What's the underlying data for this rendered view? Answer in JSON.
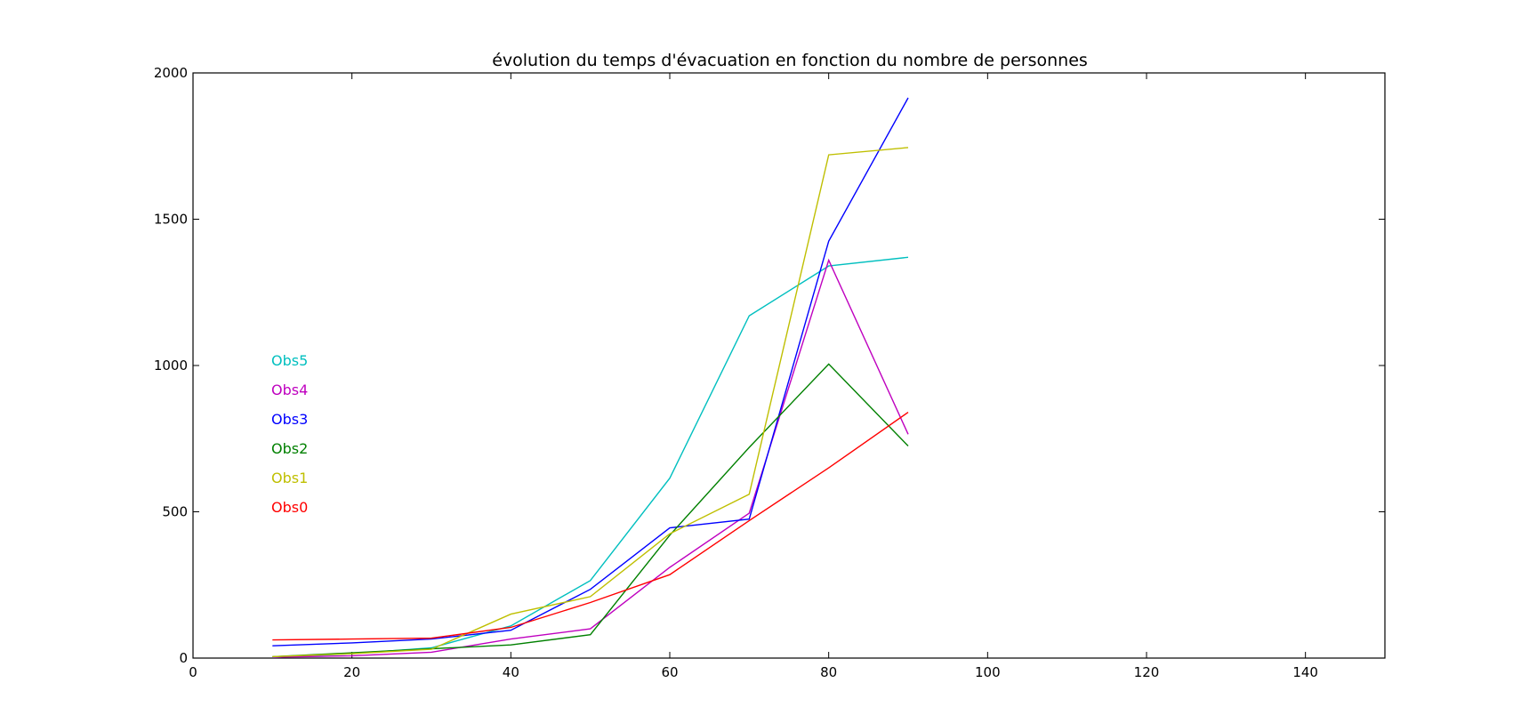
{
  "chart_data": {
    "type": "line",
    "title": "évolution du temps d'évacuation en fonction du nombre de personnes",
    "xlabel": "",
    "ylabel": "",
    "xlim": [
      0,
      150
    ],
    "ylim": [
      0,
      2000
    ],
    "xticks": [
      0,
      20,
      40,
      60,
      80,
      100,
      120,
      140
    ],
    "yticks": [
      0,
      500,
      1000,
      1500,
      2000
    ],
    "grid": false,
    "legend_placement": "left",
    "x": [
      10,
      20,
      30,
      40,
      50,
      60,
      70,
      80,
      90
    ],
    "series": [
      {
        "name": "Obs5",
        "color": "#00bfbf",
        "values": [
          2,
          15,
          35,
          110,
          265,
          615,
          1170,
          1340,
          1370
        ]
      },
      {
        "name": "Obs4",
        "color": "#bf00bf",
        "values": [
          3,
          8,
          20,
          65,
          100,
          310,
          495,
          1360,
          765
        ]
      },
      {
        "name": "Obs3",
        "color": "#0000ff",
        "values": [
          42,
          52,
          65,
          95,
          235,
          445,
          475,
          1425,
          1915
        ]
      },
      {
        "name": "Obs2",
        "color": "#008000",
        "values": [
          5,
          18,
          32,
          45,
          80,
          420,
          720,
          1005,
          725
        ]
      },
      {
        "name": "Obs1",
        "color": "#bfbf00",
        "values": [
          5,
          15,
          30,
          150,
          210,
          425,
          560,
          1720,
          1745
        ]
      },
      {
        "name": "Obs0",
        "color": "#ff0000",
        "values": [
          62,
          65,
          68,
          105,
          190,
          285,
          470,
          650,
          840
        ]
      }
    ]
  }
}
